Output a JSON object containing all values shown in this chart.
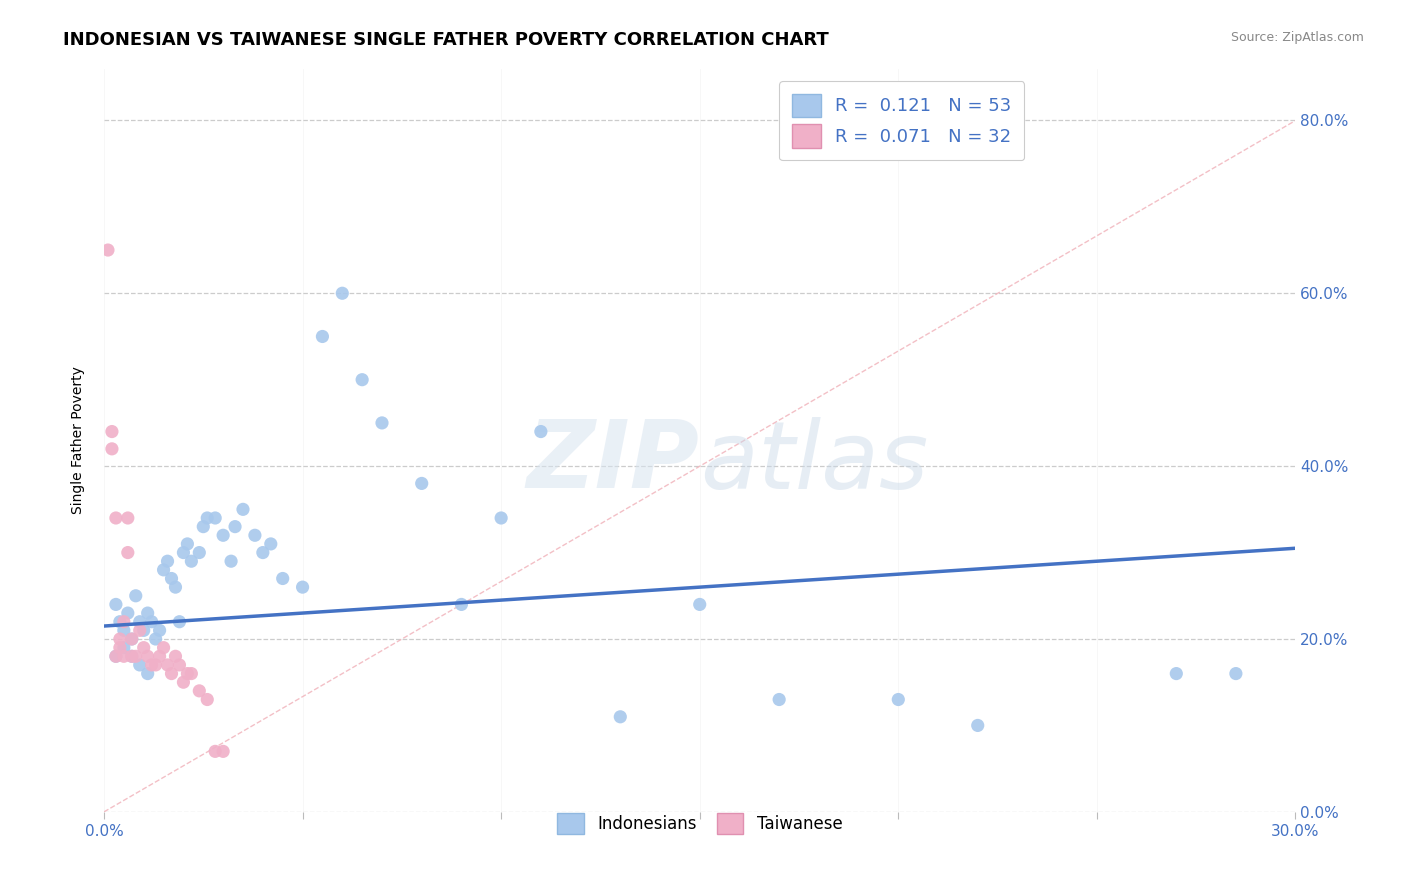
{
  "title": "INDONESIAN VS TAIWANESE SINGLE FATHER POVERTY CORRELATION CHART",
  "source": "Source: ZipAtlas.com",
  "ylabel": "Single Father Poverty",
  "blue_color": "#A8C8EC",
  "pink_color": "#F0B0C8",
  "trend_blue": "#4472C4",
  "diag_color": "#F0B0B8",
  "xlim": [
    0.0,
    0.3
  ],
  "ylim": [
    0.0,
    0.86
  ],
  "ytick_vals": [
    0.0,
    0.2,
    0.4,
    0.6,
    0.8
  ],
  "ytick_labels": [
    "0.0%",
    "20.0%",
    "40.0%",
    "60.0%",
    "80.0%"
  ],
  "xtick_vals": [
    0.0,
    0.05,
    0.1,
    0.15,
    0.2,
    0.25,
    0.3
  ],
  "xtick_labels": [
    "0.0%",
    "",
    "",
    "",
    "",
    "",
    "30.0%"
  ],
  "watermark_zip": "ZIP",
  "watermark_atlas": "atlas",
  "title_fontsize": 13,
  "axis_label_fontsize": 10,
  "tick_fontsize": 11,
  "indo_x": [
    0.003,
    0.004,
    0.005,
    0.006,
    0.007,
    0.008,
    0.009,
    0.01,
    0.011,
    0.012,
    0.013,
    0.014,
    0.015,
    0.016,
    0.017,
    0.018,
    0.019,
    0.02,
    0.021,
    0.022,
    0.024,
    0.025,
    0.026,
    0.028,
    0.03,
    0.032,
    0.033,
    0.035,
    0.038,
    0.04,
    0.042,
    0.045,
    0.05,
    0.055,
    0.06,
    0.065,
    0.07,
    0.08,
    0.09,
    0.1,
    0.11,
    0.13,
    0.15,
    0.17,
    0.2,
    0.22,
    0.27,
    0.285,
    0.003,
    0.005,
    0.007,
    0.009,
    0.011
  ],
  "indo_y": [
    0.24,
    0.22,
    0.21,
    0.23,
    0.2,
    0.25,
    0.22,
    0.21,
    0.23,
    0.22,
    0.2,
    0.21,
    0.28,
    0.29,
    0.27,
    0.26,
    0.22,
    0.3,
    0.31,
    0.29,
    0.3,
    0.33,
    0.34,
    0.34,
    0.32,
    0.29,
    0.33,
    0.35,
    0.32,
    0.3,
    0.31,
    0.27,
    0.26,
    0.55,
    0.6,
    0.5,
    0.45,
    0.38,
    0.24,
    0.34,
    0.44,
    0.11,
    0.24,
    0.13,
    0.13,
    0.1,
    0.16,
    0.16,
    0.18,
    0.19,
    0.18,
    0.17,
    0.16
  ],
  "tai_x": [
    0.001,
    0.002,
    0.002,
    0.003,
    0.003,
    0.004,
    0.004,
    0.005,
    0.005,
    0.006,
    0.006,
    0.007,
    0.007,
    0.008,
    0.009,
    0.01,
    0.011,
    0.012,
    0.013,
    0.014,
    0.015,
    0.016,
    0.017,
    0.018,
    0.019,
    0.02,
    0.021,
    0.022,
    0.024,
    0.026,
    0.028,
    0.03
  ],
  "tai_y": [
    0.65,
    0.44,
    0.42,
    0.34,
    0.18,
    0.2,
    0.19,
    0.22,
    0.18,
    0.34,
    0.3,
    0.18,
    0.2,
    0.18,
    0.21,
    0.19,
    0.18,
    0.17,
    0.17,
    0.18,
    0.19,
    0.17,
    0.16,
    0.18,
    0.17,
    0.15,
    0.16,
    0.16,
    0.14,
    0.13,
    0.07,
    0.07
  ],
  "trend_x0": 0.0,
  "trend_y0": 0.215,
  "trend_x1": 0.3,
  "trend_y1": 0.305
}
